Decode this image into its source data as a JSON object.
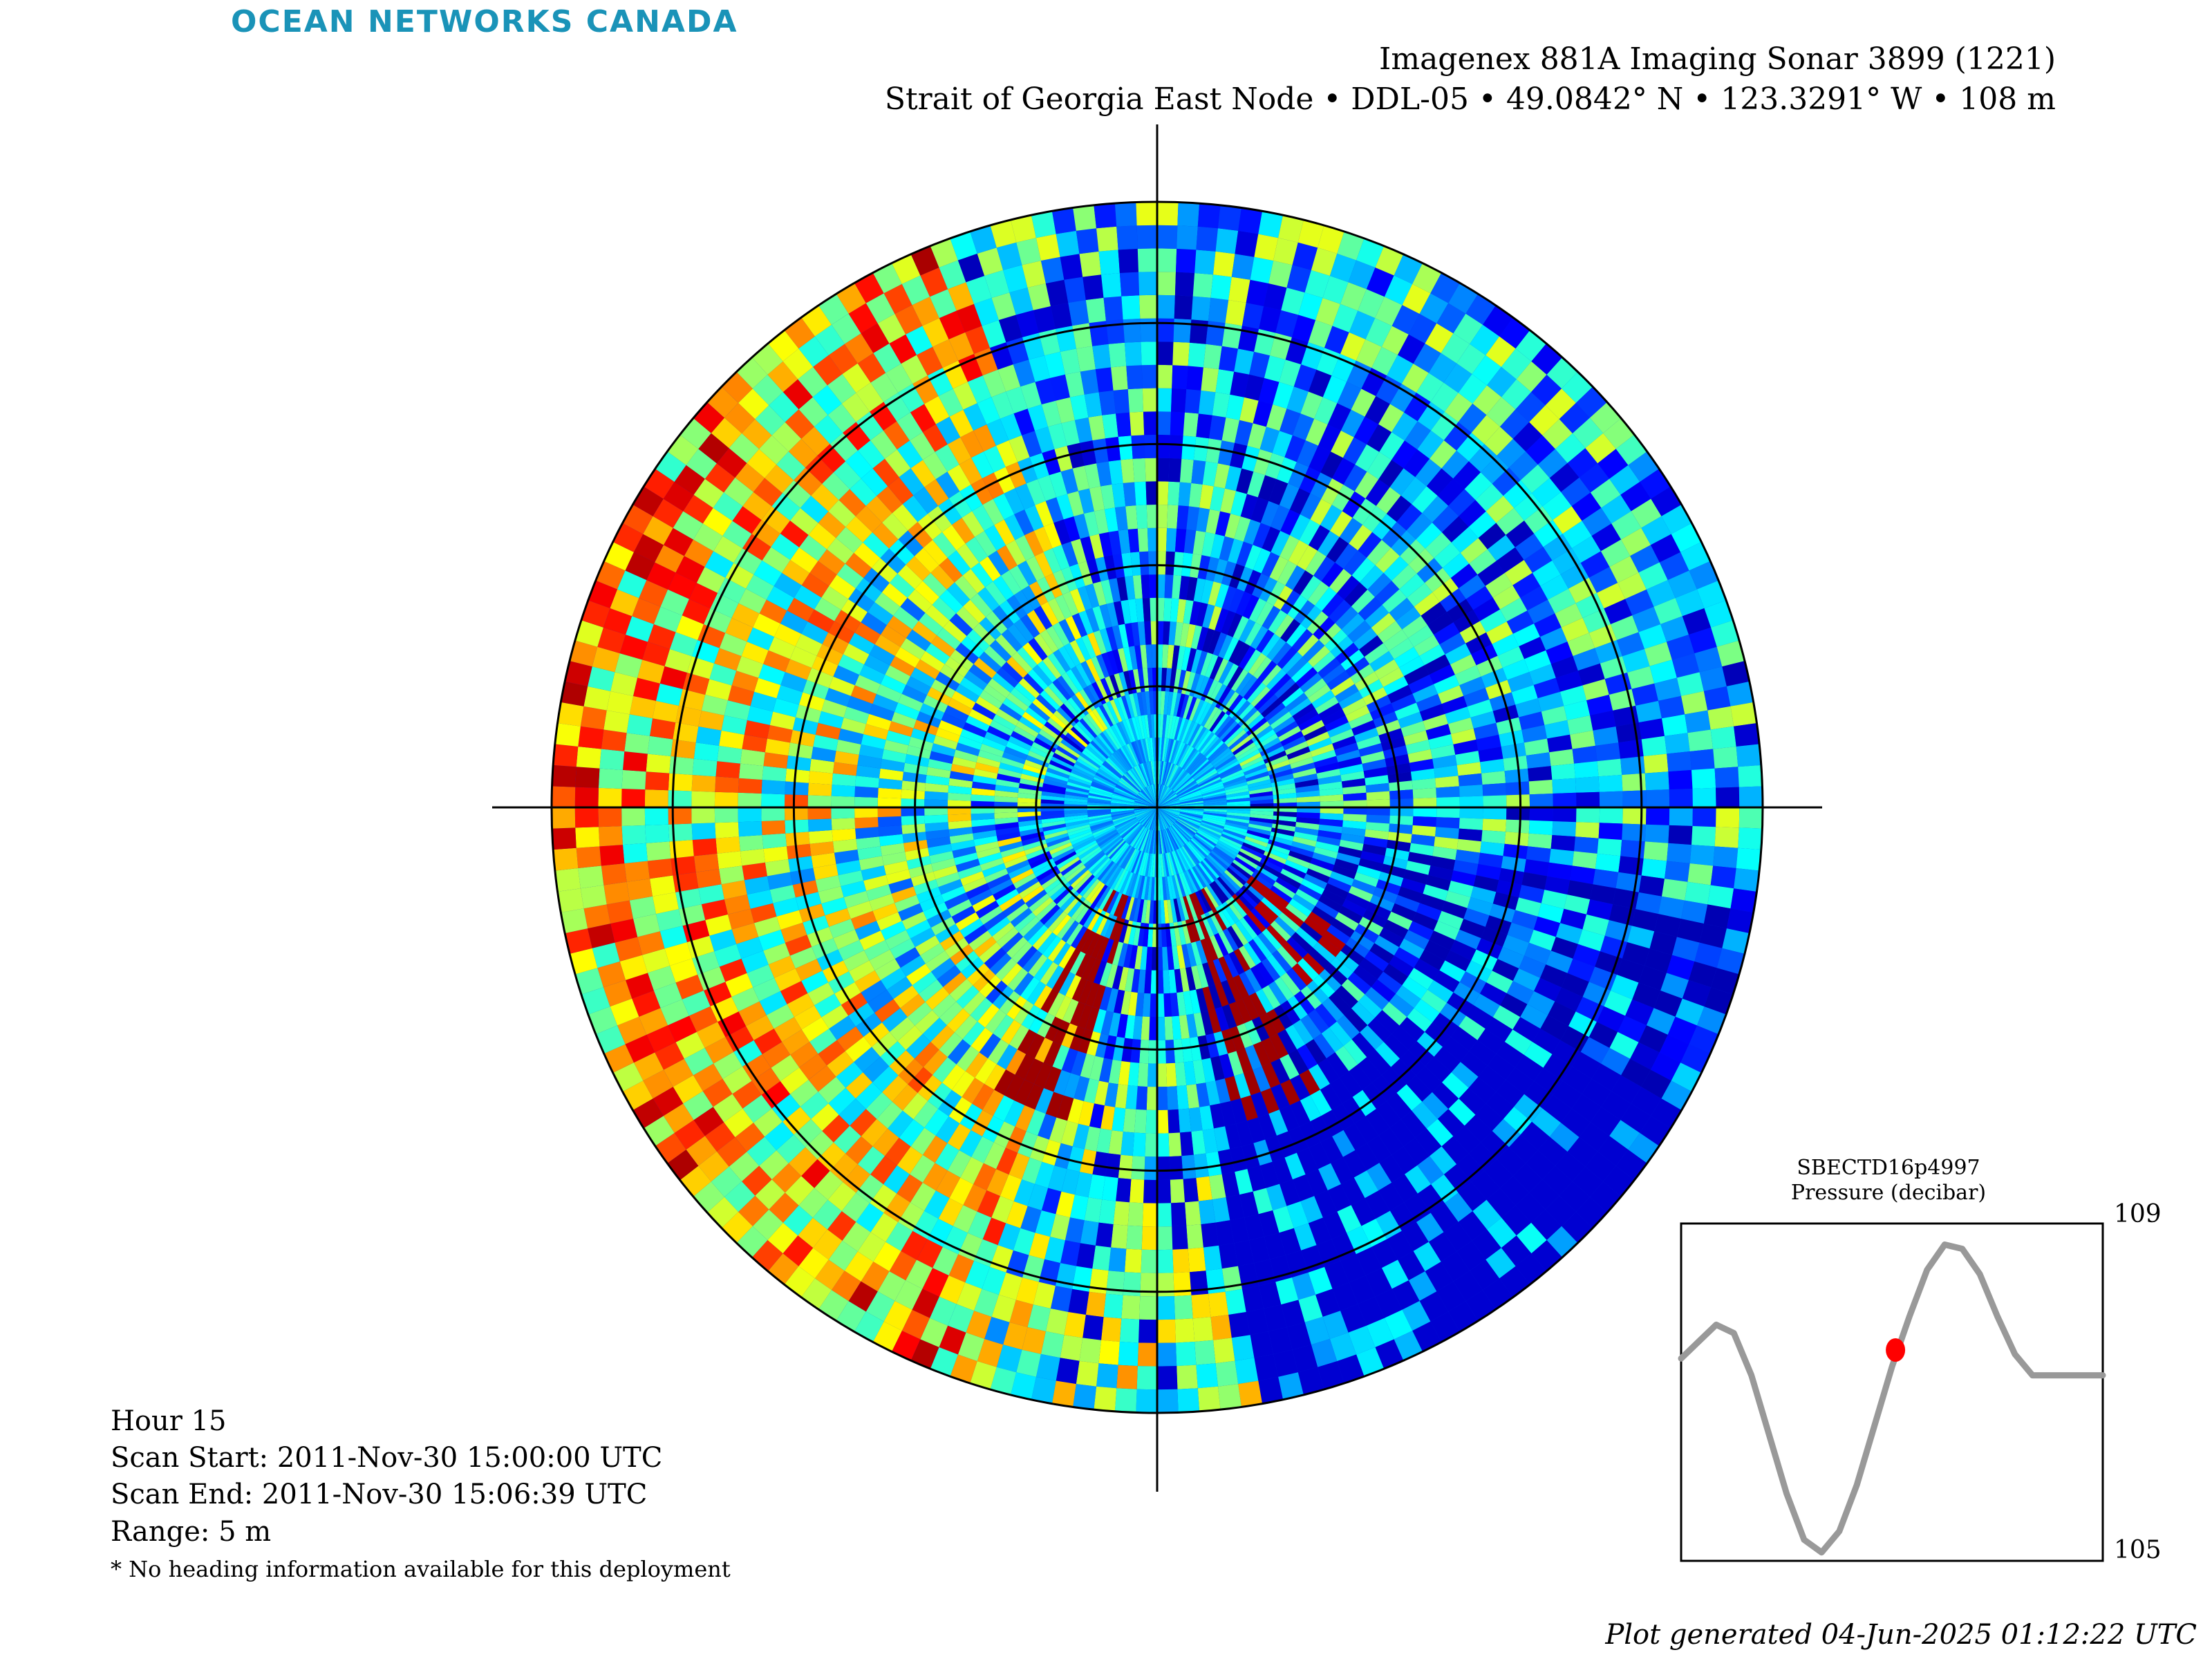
{
  "header": {
    "logo_text": "OCEAN NETWORKS CANADA",
    "title_line1": "Imagenex 881A Imaging Sonar 3899 (1221)",
    "title_line2": "Strait of Georgia East Node • DDL-05 • 49.0842° N • 123.3291° W • 108 m"
  },
  "info": {
    "hour": "Hour 15",
    "scan_start": "Scan Start: 2011-Nov-30 15:00:00 UTC",
    "scan_end": "Scan End: 2011-Nov-30 15:06:39 UTC",
    "range": "Range: 5 m",
    "note": "* No heading information available for this deployment"
  },
  "footer": {
    "generated": "Plot generated 04-Jun-2025 01:12:22 UTC"
  },
  "chart_data": [
    {
      "type": "heatmap",
      "projection": "polar",
      "colormap": "jet",
      "range_m": 5,
      "range_rings": 5,
      "crosshair": true,
      "description_source": "imaging sonar backscatter intensity",
      "seed": 881
    },
    {
      "type": "line",
      "title": "SBECTD16p4997",
      "subtitle": "Pressure (decibar)",
      "ylim": [
        105,
        109
      ],
      "y_tick_labels": [
        "109",
        "105"
      ],
      "line_color": "#999999",
      "marker_color": "#ff0000",
      "x": [
        0,
        1,
        2,
        3,
        4,
        5,
        6,
        7,
        8,
        9,
        10,
        11,
        12,
        13,
        14,
        15,
        16,
        17,
        18,
        19,
        20,
        21,
        22,
        23,
        24
      ],
      "values": [
        107.4,
        107.6,
        107.8,
        107.7,
        107.2,
        106.5,
        105.8,
        105.25,
        105.1,
        105.35,
        105.9,
        106.6,
        107.3,
        107.9,
        108.45,
        108.75,
        108.7,
        108.4,
        107.9,
        107.45,
        107.2,
        107.2,
        107.2,
        107.2,
        107.2
      ],
      "marker": {
        "x": 12.2,
        "y": 107.5
      }
    }
  ]
}
